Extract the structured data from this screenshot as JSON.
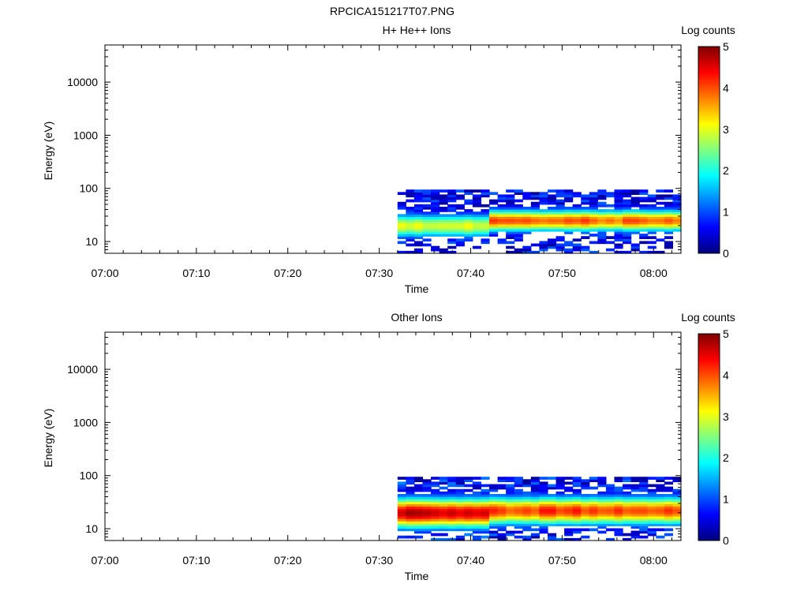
{
  "figure": {
    "title": "RPCICA151217T07.PNG"
  },
  "colors": {
    "colormap": [
      "#00007f",
      "#0000ff",
      "#007fff",
      "#00ffff",
      "#7fff7f",
      "#ffff00",
      "#ff7f00",
      "#ff0000",
      "#7f0000"
    ]
  },
  "chart_data": [
    {
      "type": "heatmap",
      "title": "H+ He++ Ions",
      "xlabel": "Time",
      "ylabel": "Energy (eV)",
      "y_scale": "log",
      "ylim": [
        6,
        50000
      ],
      "xlim": [
        "07:00",
        "08:03"
      ],
      "x_ticks": [
        "07:00",
        "07:10",
        "07:20",
        "07:30",
        "07:40",
        "07:50",
        "08:00"
      ],
      "y_ticks": [
        "10",
        "100",
        "1000",
        "10000"
      ],
      "colorbar": {
        "label": "Log counts",
        "range": [
          0,
          5
        ],
        "ticks": [
          "0",
          "1",
          "2",
          "3",
          "4",
          "5"
        ]
      },
      "data_time_range": [
        "07:32",
        "08:03"
      ],
      "data_energy_range_eV": [
        6,
        95
      ],
      "segments": [
        {
          "time_range": [
            "07:32",
            "07:42"
          ],
          "peak_energy_eV": 20,
          "peak_log_counts": 3.0,
          "peak_width": 0.22,
          "noise_level": 1.0,
          "top_energy_eV": 95
        },
        {
          "time_range": [
            "07:42",
            "08:03"
          ],
          "peak_energy_eV": 25,
          "peak_log_counts": 3.9,
          "peak_width": 0.2,
          "noise_level": 1.0,
          "top_energy_eV": 95
        }
      ]
    },
    {
      "type": "heatmap",
      "title": "Other Ions",
      "xlabel": "Time",
      "ylabel": "Energy (eV)",
      "y_scale": "log",
      "ylim": [
        6,
        50000
      ],
      "xlim": [
        "07:00",
        "08:03"
      ],
      "x_ticks": [
        "07:00",
        "07:10",
        "07:20",
        "07:30",
        "07:40",
        "07:50",
        "08:00"
      ],
      "y_ticks": [
        "10",
        "100",
        "1000",
        "10000"
      ],
      "colorbar": {
        "label": "Log counts",
        "range": [
          0,
          5
        ],
        "ticks": [
          "0",
          "1",
          "2",
          "3",
          "4",
          "5"
        ]
      },
      "data_time_range": [
        "07:32",
        "08:03"
      ],
      "data_energy_range_eV": [
        6,
        95
      ],
      "segments": [
        {
          "time_range": [
            "07:32",
            "07:42"
          ],
          "peak_energy_eV": 20,
          "peak_log_counts": 4.7,
          "peak_width": 0.28,
          "noise_level": 1.2,
          "top_energy_eV": 95
        },
        {
          "time_range": [
            "07:42",
            "08:03"
          ],
          "peak_energy_eV": 22,
          "peak_log_counts": 4.1,
          "peak_width": 0.26,
          "noise_level": 1.1,
          "top_energy_eV": 95
        }
      ]
    }
  ]
}
